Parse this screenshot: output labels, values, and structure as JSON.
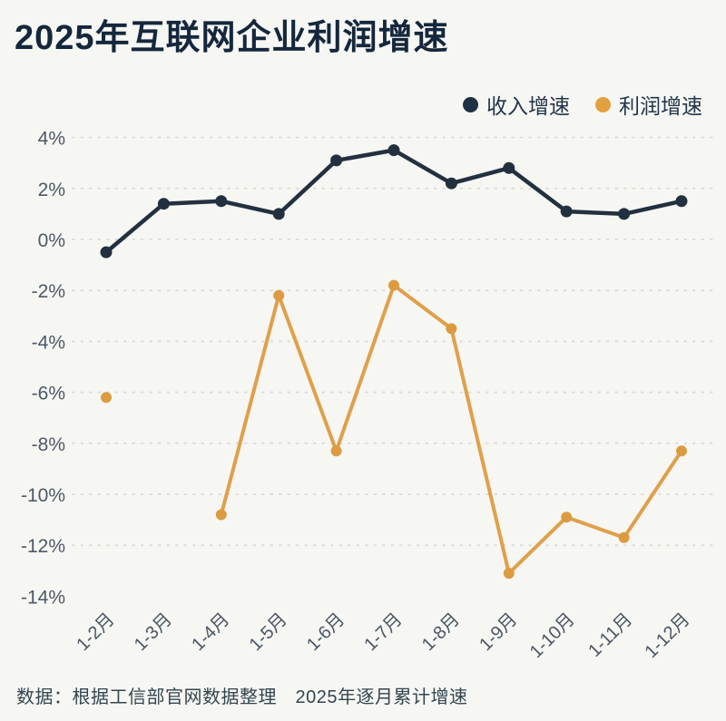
{
  "title": "2025年互联网企业利润增速",
  "footer": "数据：根据工信部官网数据整理　2025年逐月累计增速",
  "legend": [
    {
      "label": "收入增速",
      "color": "#1f3044"
    },
    {
      "label": "利润增速",
      "color": "#e2a13f"
    }
  ],
  "chart_style": {
    "background": "#f6f6f3",
    "grid_color": "#dcdcd7",
    "tick_label_color": "#4d5966",
    "title_color": "#14273c"
  },
  "chart_data": {
    "type": "line",
    "title": "2025年互联网企业利润增速",
    "subtitle": "2025年逐月累计增速",
    "xlabel": "",
    "ylabel": "",
    "ylim": [
      -14,
      4
    ],
    "grid": "horizontal dashed lines every 2% from 4% to -12%; -14% labeled without gridline",
    "legend_position": "top-right",
    "categories": [
      "1-2月",
      "1-3月",
      "1-4月",
      "1-5月",
      "1-6月",
      "1-7月",
      "1-8月",
      "1-9月",
      "1-10月",
      "1-11月",
      "1-12月"
    ],
    "yticks": [
      {
        "value": 4,
        "label": "4%",
        "grid": true
      },
      {
        "value": 2,
        "label": "2%",
        "grid": true
      },
      {
        "value": 0,
        "label": "0%",
        "grid": true
      },
      {
        "value": -2,
        "label": "-2%",
        "grid": true
      },
      {
        "value": -4,
        "label": "-4%",
        "grid": true
      },
      {
        "value": -6,
        "label": "-6%",
        "grid": true
      },
      {
        "value": -8,
        "label": "-8%",
        "grid": true
      },
      {
        "value": -10,
        "label": "-10%",
        "grid": true
      },
      {
        "value": -12,
        "label": "-12%",
        "grid": true
      },
      {
        "value": -14,
        "label": "-14%",
        "grid": false
      }
    ],
    "series": [
      {
        "id": "revenue-growth",
        "name": "收入增速",
        "color": "#22303f",
        "dot_color": "#22303f",
        "values": [
          -0.5,
          1.4,
          1.5,
          1.0,
          3.1,
          3.5,
          2.2,
          2.8,
          1.1,
          1.0,
          1.5
        ]
      },
      {
        "id": "profit-growth",
        "name": "利润增速",
        "color": "#dfa04a",
        "dot_color": "#dc9b41",
        "values": [
          -6.2,
          null,
          -10.8,
          -2.2,
          -8.3,
          -1.8,
          -3.5,
          -13.1,
          -10.9,
          -11.7,
          -8.3
        ]
      }
    ]
  }
}
